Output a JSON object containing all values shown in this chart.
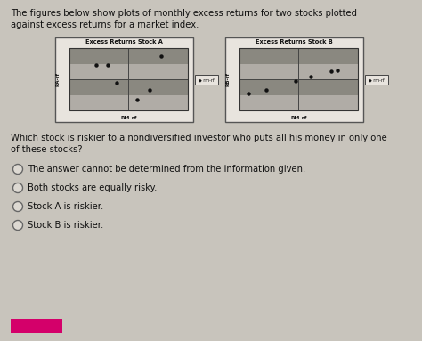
{
  "page_bg": "#c8c4bc",
  "content_bg": "#ddd9d2",
  "title_text_line1": "The figures below show plots of monthly excess returns for two stocks plotted",
  "title_text_line2": "against excess returns for a market index.",
  "chart_A_title": "Excess Returns Stock A",
  "chart_B_title": "Excess Returns Stock B",
  "xlabel": "RM-rf",
  "ylabel_A": "RA-rf",
  "ylabel_B": "RB-rf",
  "legend_label": "◆ rm-rf",
  "chart_A_points": [
    [
      0.55,
      0.75
    ],
    [
      -0.35,
      0.45
    ],
    [
      -0.55,
      0.45
    ],
    [
      -0.2,
      -0.1
    ],
    [
      0.35,
      -0.35
    ],
    [
      0.15,
      -0.65
    ]
  ],
  "chart_B_points": [
    [
      -0.85,
      -0.45
    ],
    [
      -0.55,
      -0.35
    ],
    [
      -0.05,
      -0.05
    ],
    [
      0.2,
      0.1
    ],
    [
      0.55,
      0.25
    ],
    [
      0.65,
      0.3
    ]
  ],
  "stripe_dark": "#8a8880",
  "stripe_light": "#b0aca6",
  "point_color": "#111111",
  "outer_box_bg": "#e8e4de",
  "outer_box_edge": "#555555",
  "inner_box_edge": "#333333",
  "axis_line_color": "#444444",
  "legend_box_bg": "#e8e4de",
  "question_text_line1": "Which stock is riskier to a nondiversified investoṙ who puts all his money in only one",
  "question_text_line2": "of these stocks?",
  "options": [
    "The answer cannot be determined from the information given.",
    "Both stocks are equally risky.",
    "Stock A is riskier.",
    "Stock B is riskier."
  ],
  "button_color": "#d4006a"
}
